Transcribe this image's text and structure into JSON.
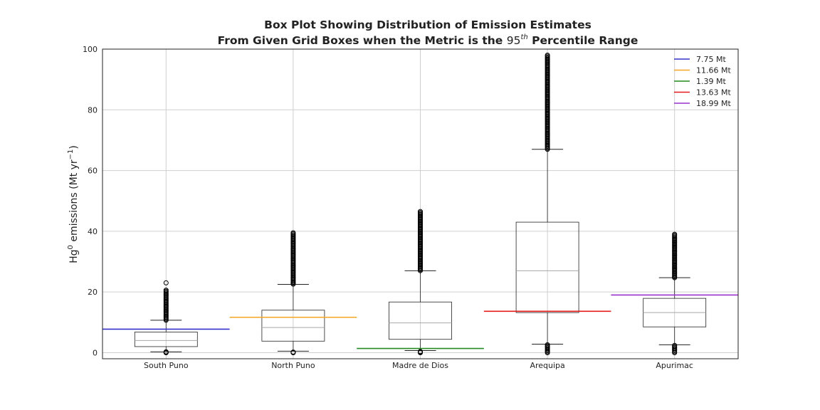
{
  "chart_data": {
    "type": "box",
    "title_line1": "Box Plot Showing Distribution of Emission Estimates",
    "title_line2_prefix": "From Given Grid Boxes when the Metric is the ",
    "title_line2_number": "95",
    "title_line2_sup": "th",
    "title_line2_suffix": " Percentile Range",
    "ylabel_main": "Hg",
    "ylabel_sup": "0",
    "ylabel_mid": " emissions (Mt yr",
    "ylabel_sup2": "−1",
    "ylabel_end": ")",
    "ylim": [
      -2,
      100
    ],
    "yticks": [
      0,
      20,
      40,
      60,
      80,
      100
    ],
    "grid": true,
    "legend_position": "top-right",
    "categories": [
      "South Puno",
      "North Puno",
      "Madre de Dios",
      "Arequipa",
      "Apurimac"
    ],
    "boxes": [
      {
        "whisker_low": 0.3,
        "q1": 2.0,
        "median": 4.0,
        "q3": 6.8,
        "whisker_high": 10.7,
        "outliers_low": [
          0.0,
          0.3
        ],
        "outliers_high_range": [
          10.7,
          20.6
        ],
        "outliers_high_extra": [
          23.0
        ]
      },
      {
        "whisker_low": 0.5,
        "q1": 3.8,
        "median": 8.3,
        "q3": 14.0,
        "whisker_high": 22.5,
        "outliers_low": [
          0.0,
          0.2
        ],
        "outliers_high_range": [
          22.6,
          39.5
        ],
        "outliers_high_extra": []
      },
      {
        "whisker_low": 0.7,
        "q1": 4.4,
        "median": 9.8,
        "q3": 16.7,
        "whisker_high": 27.0,
        "outliers_low": [
          0.0,
          0.4
        ],
        "outliers_high_range": [
          27.0,
          46.5
        ],
        "outliers_high_extra": []
      },
      {
        "whisker_low": 2.8,
        "q1": 13.2,
        "median": 27.0,
        "q3": 43.0,
        "whisker_high": 67.0,
        "outliers_low": [
          0.0,
          2.6
        ],
        "outliers_high_range": [
          67.0,
          98.0
        ],
        "outliers_high_extra": []
      },
      {
        "whisker_low": 2.6,
        "q1": 8.5,
        "median": 13.2,
        "q3": 17.9,
        "whisker_high": 24.7,
        "outliers_low": [
          0.0,
          2.4
        ],
        "outliers_high_range": [
          24.7,
          39.0
        ],
        "outliers_high_extra": []
      }
    ],
    "series": [
      {
        "name": "7.75 Mt",
        "value": 7.75,
        "color": "#3333cc",
        "category_index": 0
      },
      {
        "name": "11.66 Mt",
        "value": 11.66,
        "color": "#f5a623",
        "category_index": 1
      },
      {
        "name": "1.39 Mt",
        "value": 1.39,
        "color": "#228B22",
        "category_index": 2
      },
      {
        "name": "13.63 Mt",
        "value": 13.63,
        "color": "#e41a1c",
        "category_index": 3
      },
      {
        "name": "18.99 Mt",
        "value": 18.99,
        "color": "#9932cc",
        "category_index": 4
      }
    ]
  }
}
